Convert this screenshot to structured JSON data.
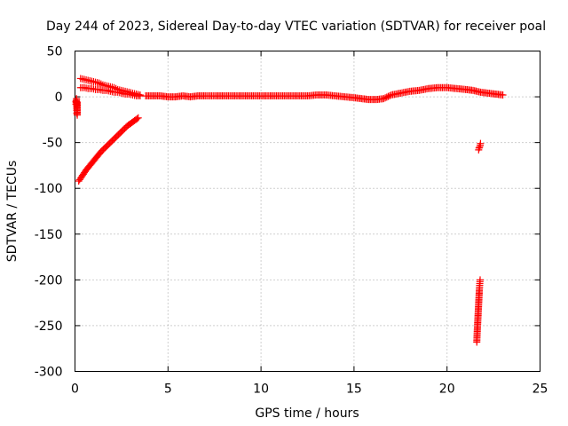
{
  "chart_data": {
    "type": "scatter",
    "title": "Day 244 of 2023, Sidereal Day-to-day VTEC variation (SDTVAR) for receiver poal",
    "xlabel": "GPS time / hours",
    "ylabel": "SDTVAR / TECUs",
    "xlim": [
      0,
      25
    ],
    "ylim": [
      -300,
      50
    ],
    "grid": true,
    "marker": "plus",
    "color": "#ff0000",
    "x_ticks": [
      0,
      5,
      10,
      15,
      20,
      25
    ],
    "x_tick_labels": [
      "0",
      "5",
      "10",
      "15",
      "20",
      "25"
    ],
    "y_ticks": [
      50,
      0,
      -50,
      -100,
      -150,
      -200,
      -250,
      -300
    ],
    "y_tick_labels": [
      "50",
      "0",
      "-50",
      "-100",
      "-150",
      "-200",
      "-250",
      "-300"
    ],
    "series": [
      {
        "name": "early-isolated",
        "x": [
          0.05,
          0.05,
          0.08,
          0.1,
          0.1,
          0.12,
          0.12
        ],
        "y": [
          -5,
          -8,
          -2,
          -15,
          -18,
          -20,
          -6
        ]
      },
      {
        "name": "rising-arc",
        "x": [
          0.2,
          0.4,
          0.6,
          0.8,
          1.0,
          1.2,
          1.4,
          1.6,
          1.8,
          2.0,
          2.2,
          2.4,
          2.6,
          2.8,
          3.0,
          3.2,
          3.4
        ],
        "y": [
          -92,
          -86,
          -80,
          -75,
          -70,
          -65,
          -60,
          -56,
          -52,
          -48,
          -44,
          -40,
          -36,
          -32,
          -29,
          -26,
          -23
        ]
      },
      {
        "name": "upper-band-decay",
        "x": [
          0.3,
          0.5,
          0.7,
          0.9,
          1.1,
          1.3,
          1.5,
          1.7,
          1.9,
          2.1,
          2.3,
          2.5,
          2.7,
          2.9,
          3.1,
          3.3,
          3.5
        ],
        "y": [
          20,
          19,
          18,
          17,
          16,
          15,
          13,
          12,
          11,
          10,
          8,
          7,
          6,
          5,
          4,
          3,
          2
        ]
      },
      {
        "name": "lower-band-decay",
        "x": [
          0.3,
          0.5,
          0.7,
          0.9,
          1.1,
          1.3,
          1.5,
          1.7,
          1.9,
          2.1,
          2.3,
          2.5,
          2.7,
          2.9,
          3.1,
          3.3,
          3.5
        ],
        "y": [
          10,
          10,
          9,
          9,
          8,
          8,
          7,
          7,
          6,
          5,
          5,
          4,
          3,
          3,
          2,
          1,
          1
        ]
      },
      {
        "name": "main-track",
        "x": [
          3.8,
          4.2,
          4.6,
          5.0,
          5.4,
          5.8,
          6.2,
          6.6,
          7.0,
          7.6,
          8.0,
          8.5,
          9.0,
          9.5,
          10.0,
          10.5,
          11.0,
          11.5,
          12.0,
          12.5,
          13.0,
          13.5,
          14.0,
          14.5,
          15.0,
          15.4,
          15.8,
          16.2,
          16.6,
          17.0,
          17.5,
          18.0,
          18.5,
          19.0,
          19.5,
          20.0,
          20.5,
          21.0,
          21.4,
          21.8,
          22.2,
          22.6,
          23.0
        ],
        "y": [
          1,
          1,
          1,
          0,
          0,
          1,
          0,
          1,
          1,
          1,
          1,
          1,
          1,
          1,
          1,
          1,
          1,
          1,
          1,
          1,
          2,
          2,
          1,
          0,
          -1,
          -2,
          -3,
          -3,
          -2,
          2,
          4,
          6,
          7,
          9,
          10,
          10,
          9,
          8,
          7,
          5,
          4,
          3,
          2
        ]
      },
      {
        "name": "late-dip",
        "x": [
          21.7,
          21.72,
          21.75,
          21.78,
          21.8
        ],
        "y": [
          -58,
          -56,
          -55,
          -53,
          -51
        ]
      },
      {
        "name": "late-spike",
        "x": [
          21.6,
          21.62,
          21.64,
          21.66,
          21.68,
          21.7,
          21.72,
          21.74,
          21.76,
          21.78
        ],
        "y": [
          -268,
          -258,
          -250,
          -242,
          -234,
          -226,
          -218,
          -210,
          -204,
          -200
        ]
      }
    ]
  }
}
